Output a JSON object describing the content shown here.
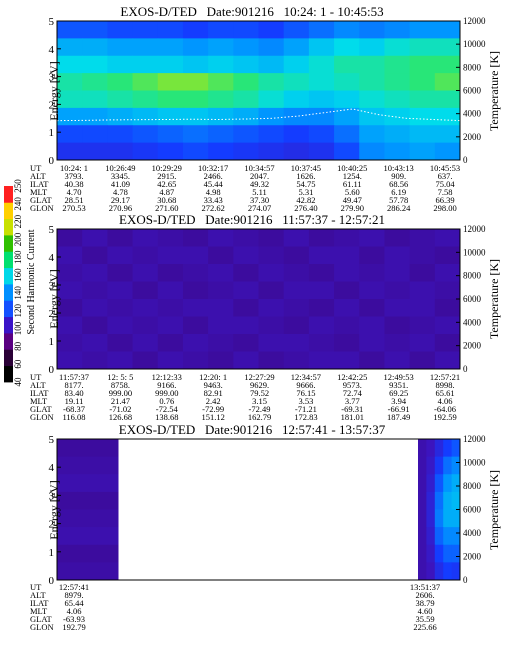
{
  "chart_data": {
    "type": "heatmap",
    "colorbar": {
      "label": "Second Harmonic Current",
      "ticks": [
        "40",
        "60",
        "80",
        "100",
        "120",
        "140",
        "160",
        "180",
        "200",
        "220",
        "240",
        "250"
      ],
      "colors": [
        "#000000",
        "#2a0036",
        "#5a0082",
        "#3a14c8",
        "#1450ff",
        "#0090ff",
        "#00d8e8",
        "#00e070",
        "#30c000",
        "#c8e000",
        "#ffd000",
        "#ff2020"
      ]
    },
    "panels": [
      {
        "title": "EXOS-D/TED   Date:901216   10:24: 1 - 10:45:53",
        "ylabel": "Energy [eV]",
        "ylabel_right": "Temperature [K]",
        "ylim": [
          0,
          5
        ],
        "ylim_right": [
          0,
          12000
        ],
        "yticks": [
          "0",
          "1",
          "2",
          "3",
          "4",
          "5"
        ],
        "yticks_right": [
          "0",
          "2000",
          "4000",
          "6000",
          "8000",
          "10000",
          "12000"
        ],
        "orbit_columns": [
          {
            "UT": "10:24: 1",
            "ALT": "3793.",
            "ILAT": "40.38",
            "MLT": "4.70",
            "GLAT": "28.51",
            "GLON": "270.53"
          },
          {
            "UT": "10:26:49",
            "ALT": "3345.",
            "ILAT": "41.09",
            "MLT": "4.78",
            "GLAT": "29.17",
            "GLON": "270.96"
          },
          {
            "UT": "10:29:29",
            "ALT": "2915.",
            "ILAT": "42.65",
            "MLT": "4.87",
            "GLAT": "30.68",
            "GLON": "271.60"
          },
          {
            "UT": "10:32:17",
            "ALT": "2466.",
            "ILAT": "45.44",
            "MLT": "4.98",
            "GLAT": "33.43",
            "GLON": "272.62"
          },
          {
            "UT": "10:34:57",
            "ALT": "2047.",
            "ILAT": "49.32",
            "MLT": "5.11",
            "GLAT": "37.30",
            "GLON": "274.07"
          },
          {
            "UT": "10:37:45",
            "ALT": "1626.",
            "ILAT": "54.75",
            "MLT": "5.31",
            "GLAT": "42.82",
            "GLON": "276.40"
          },
          {
            "UT": "10:40:25",
            "ALT": "1254.",
            "ILAT": "61.11",
            "MLT": "5.60",
            "GLAT": "49.47",
            "GLON": "279.90"
          },
          {
            "UT": "10:43:13",
            "ALT": "909.",
            "ILAT": "68.56",
            "MLT": "6.19",
            "GLAT": "57.78",
            "GLON": "286.24"
          },
          {
            "UT": "10:45:53",
            "ALT": "637.",
            "ILAT": "75.04",
            "MLT": "7.58",
            "GLAT": "66.39",
            "GLON": "298.00"
          }
        ],
        "temperature_trace_K": [
          3400,
          3420,
          3460,
          3480,
          3500,
          3520,
          3500,
          3540,
          3600,
          3800,
          4100,
          4400,
          3900,
          3600,
          3500,
          3400
        ],
        "intensity_rows_high_to_low_energy": [
          [
            0.52,
            0.52,
            0.5,
            0.5,
            0.5,
            0.48,
            0.5,
            0.5,
            0.48,
            0.52,
            0.56,
            0.6,
            0.58,
            0.6,
            0.62,
            0.62
          ],
          [
            0.66,
            0.66,
            0.64,
            0.64,
            0.64,
            0.62,
            0.64,
            0.62,
            0.6,
            0.64,
            0.7,
            0.74,
            0.72,
            0.76,
            0.78,
            0.78
          ],
          [
            0.74,
            0.74,
            0.72,
            0.72,
            0.72,
            0.7,
            0.72,
            0.7,
            0.68,
            0.72,
            0.76,
            0.8,
            0.8,
            0.82,
            0.84,
            0.84
          ],
          [
            0.8,
            0.82,
            0.84,
            0.86,
            0.88,
            0.88,
            0.86,
            0.84,
            0.8,
            0.78,
            0.76,
            0.78,
            0.8,
            0.82,
            0.84,
            0.86
          ],
          [
            0.78,
            0.78,
            0.8,
            0.82,
            0.84,
            0.84,
            0.82,
            0.8,
            0.76,
            0.72,
            0.7,
            0.72,
            0.76,
            0.78,
            0.8,
            0.8
          ],
          [
            0.64,
            0.64,
            0.66,
            0.68,
            0.7,
            0.7,
            0.68,
            0.66,
            0.62,
            0.6,
            0.6,
            0.64,
            0.7,
            0.72,
            0.74,
            0.74
          ],
          [
            0.5,
            0.5,
            0.5,
            0.52,
            0.54,
            0.56,
            0.54,
            0.52,
            0.5,
            0.48,
            0.5,
            0.56,
            0.64,
            0.66,
            0.68,
            0.68
          ],
          [
            0.44,
            0.44,
            0.44,
            0.46,
            0.48,
            0.5,
            0.48,
            0.46,
            0.44,
            0.42,
            0.44,
            0.5,
            0.6,
            0.62,
            0.64,
            0.62
          ]
        ]
      },
      {
        "title": "EXOS-D/TED   Date:901216   11:57:37 - 12:57:21",
        "ylabel": "Energy [eV]",
        "ylabel_right": "Temperature [K]",
        "ylim": [
          0,
          5
        ],
        "ylim_right": [
          0,
          12000
        ],
        "yticks": [
          "0",
          "1",
          "2",
          "3",
          "4",
          "5"
        ],
        "yticks_right": [
          "0",
          "2000",
          "4000",
          "6000",
          "8000",
          "10000",
          "12000"
        ],
        "orbit_columns": [
          {
            "UT": "11:57:37",
            "ALT": "8177.",
            "ILAT": "83.40",
            "MLT": "19.11",
            "GLAT": "-68.37",
            "GLON": "116.08"
          },
          {
            "UT": "12: 5: 5",
            "ALT": "8758.",
            "ILAT": "999.00",
            "MLT": "21.47",
            "GLAT": "-71.02",
            "GLON": "126.68"
          },
          {
            "UT": "12:12:33",
            "ALT": "9166.",
            "ILAT": "999.00",
            "MLT": "0.76",
            "GLAT": "-72.54",
            "GLON": "138.68"
          },
          {
            "UT": "12:20: 1",
            "ALT": "9463.",
            "ILAT": "82.91",
            "MLT": "2.42",
            "GLAT": "-72.99",
            "GLON": "151.12"
          },
          {
            "UT": "12:27:29",
            "ALT": "9629.",
            "ILAT": "79.52",
            "MLT": "3.15",
            "GLAT": "-72.49",
            "GLON": "162.79"
          },
          {
            "UT": "12:34:57",
            "ALT": "9666.",
            "ILAT": "76.15",
            "MLT": "3.53",
            "GLAT": "-71.21",
            "GLON": "172.83"
          },
          {
            "UT": "12:42:25",
            "ALT": "9573.",
            "ILAT": "72.74",
            "MLT": "3.77",
            "GLAT": "-69.31",
            "GLON": "181.01"
          },
          {
            "UT": "12:49:53",
            "ALT": "9351.",
            "ILAT": "69.25",
            "MLT": "3.94",
            "GLAT": "-66.91",
            "GLON": "187.49"
          },
          {
            "UT": "12:57:21",
            "ALT": "8998.",
            "ILAT": "65.61",
            "MLT": "4.06",
            "GLAT": "-64.06",
            "GLON": "192.59"
          }
        ],
        "intensity_rows_high_to_low_energy": [
          [
            0.28,
            0.3,
            0.28,
            0.3,
            0.29,
            0.28,
            0.3,
            0.29,
            0.28,
            0.3,
            0.28,
            0.29,
            0.3,
            0.28,
            0.29,
            0.3
          ],
          [
            0.3,
            0.28,
            0.3,
            0.29,
            0.3,
            0.3,
            0.28,
            0.3,
            0.29,
            0.28,
            0.3,
            0.3,
            0.28,
            0.3,
            0.29,
            0.28
          ],
          [
            0.29,
            0.3,
            0.28,
            0.3,
            0.28,
            0.29,
            0.3,
            0.28,
            0.3,
            0.29,
            0.28,
            0.3,
            0.29,
            0.3,
            0.28,
            0.3
          ],
          [
            0.3,
            0.29,
            0.3,
            0.28,
            0.3,
            0.28,
            0.29,
            0.3,
            0.28,
            0.3,
            0.3,
            0.28,
            0.3,
            0.29,
            0.3,
            0.29
          ],
          [
            0.28,
            0.3,
            0.29,
            0.3,
            0.29,
            0.3,
            0.3,
            0.28,
            0.3,
            0.29,
            0.28,
            0.3,
            0.28,
            0.3,
            0.3,
            0.28
          ],
          [
            0.3,
            0.28,
            0.3,
            0.29,
            0.3,
            0.28,
            0.3,
            0.3,
            0.29,
            0.28,
            0.3,
            0.29,
            0.3,
            0.28,
            0.29,
            0.3
          ],
          [
            0.29,
            0.3,
            0.28,
            0.3,
            0.28,
            0.3,
            0.29,
            0.28,
            0.3,
            0.3,
            0.29,
            0.28,
            0.3,
            0.29,
            0.3,
            0.28
          ],
          [
            0.3,
            0.29,
            0.3,
            0.28,
            0.3,
            0.29,
            0.28,
            0.3,
            0.28,
            0.29,
            0.3,
            0.3,
            0.28,
            0.3,
            0.28,
            0.3
          ]
        ]
      },
      {
        "title": "EXOS-D/TED   Date:901216   12:57:41 - 13:57:37",
        "ylabel": "Energy [eV]",
        "ylabel_right": "Temperature [K]",
        "ylim": [
          0,
          5
        ],
        "ylim_right": [
          0,
          12000
        ],
        "yticks": [
          "0",
          "1",
          "2",
          "3",
          "4",
          "5"
        ],
        "yticks_right": [
          "0",
          "2000",
          "4000",
          "6000",
          "8000",
          "10000",
          "12000"
        ],
        "orbit_columns": [
          {
            "UT": "12:57:41",
            "ALT": "8979.",
            "ILAT": "65.44",
            "MLT": "4.06",
            "GLAT": "-63.93",
            "GLON": "192.79"
          },
          {
            "UT": "13:51:37",
            "ALT": "2606.",
            "ILAT": "38.79",
            "MLT": "4.60",
            "GLAT": "35.59",
            "GLON": "225.66"
          }
        ],
        "data_segments": [
          {
            "start": "12:57:41",
            "end": "13:02:00"
          },
          {
            "start": "13:51:37",
            "end": "13:57:37"
          }
        ],
        "intensity_rows_high_to_low_energy_end_segment": [
          [
            0.3,
            0.32,
            0.4,
            0.48,
            0.52
          ],
          [
            0.3,
            0.34,
            0.46,
            0.56,
            0.6
          ],
          [
            0.3,
            0.36,
            0.52,
            0.62,
            0.66
          ],
          [
            0.3,
            0.38,
            0.56,
            0.66,
            0.68
          ],
          [
            0.3,
            0.38,
            0.58,
            0.66,
            0.66
          ],
          [
            0.3,
            0.36,
            0.54,
            0.6,
            0.6
          ],
          [
            0.3,
            0.34,
            0.48,
            0.54,
            0.54
          ],
          [
            0.3,
            0.32,
            0.42,
            0.48,
            0.46
          ]
        ]
      }
    ]
  }
}
